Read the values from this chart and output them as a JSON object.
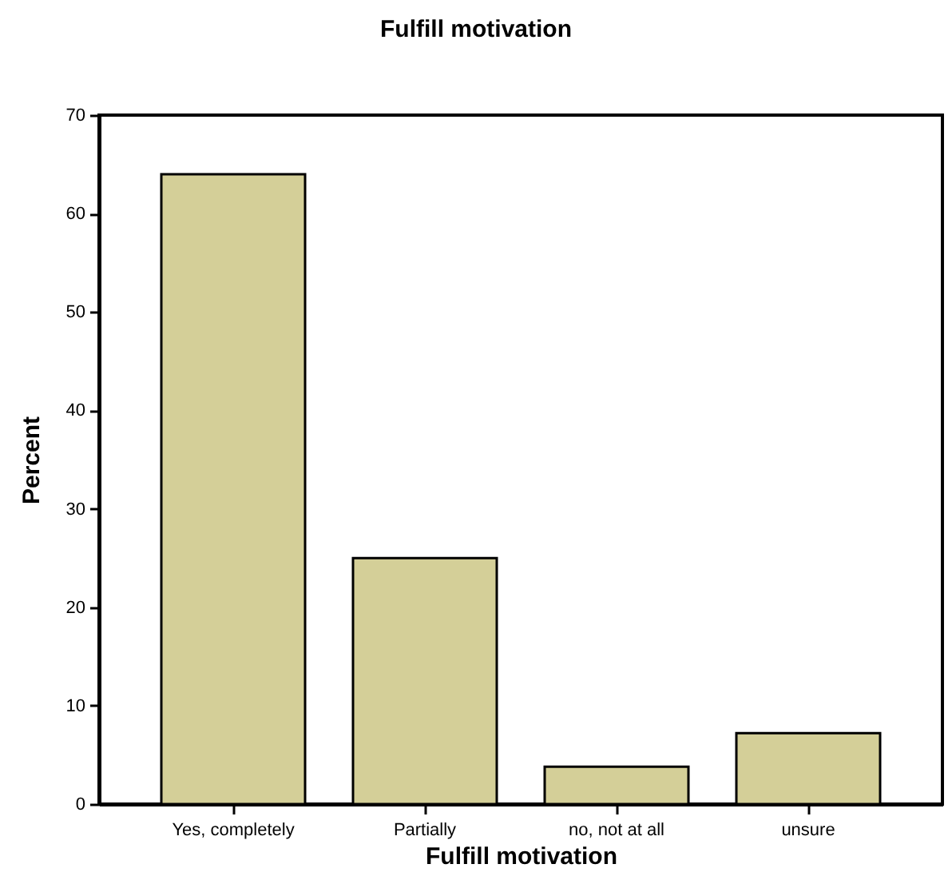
{
  "chart_data": {
    "type": "bar",
    "title": "Fulfill motivation",
    "xlabel": "Fulfill motivation",
    "ylabel": "Percent",
    "categories": [
      "Yes, completely",
      "Partially",
      "no, not at all",
      "unsure"
    ],
    "values": [
      64.0,
      25.0,
      3.8,
      7.2
    ],
    "color": "#d4cf98",
    "ylim": [
      0,
      70
    ],
    "yticks": [
      0,
      10,
      20,
      30,
      40,
      50,
      60,
      70
    ],
    "grid": false
  }
}
